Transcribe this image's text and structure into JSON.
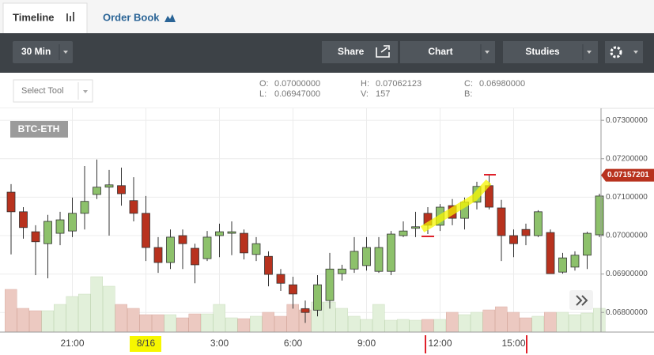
{
  "tabs": [
    "Timeline",
    "Order Book"
  ],
  "toolbar": {
    "interval": "30 Min",
    "share": "Share",
    "chart": "Chart",
    "studies": "Studies"
  },
  "select_tool": "Select Tool",
  "ohlc": [
    {
      "label": "O:",
      "value": "0.07000000"
    },
    {
      "label": "L:",
      "value": "0.06947000"
    },
    {
      "label": "H:",
      "value": "0.07062123"
    },
    {
      "label": "V:",
      "value": "157"
    },
    {
      "label": "C:",
      "value": "0.06980000"
    },
    {
      "label": "B:"
    }
  ],
  "chart_data": {
    "type": "candlestick",
    "symbol": "BTC-ETH",
    "categories": [
      null,
      null,
      null,
      null,
      null,
      "21:00",
      null,
      null,
      null,
      null,
      null,
      "8/16",
      null,
      null,
      null,
      null,
      null,
      "3:00",
      null,
      null,
      null,
      null,
      null,
      "6:00",
      null,
      null,
      null,
      null,
      null,
      "9:00",
      null,
      null,
      null,
      null,
      null,
      "12:00",
      null,
      null,
      null,
      null,
      null,
      "15:00",
      null,
      null,
      null,
      null,
      null,
      null,
      null
    ],
    "open": [
      0.07113,
      0.07062,
      0.0701,
      0.06979,
      0.07006,
      0.07012,
      0.07058,
      0.07107,
      0.07126,
      0.0713,
      0.07091,
      0.07058,
      0.06969,
      0.0693,
      0.07,
      0.06967,
      0.0694,
      0.07,
      0.07006,
      0.07006,
      0.06951,
      0.06946,
      0.06899,
      0.06872,
      0.0681,
      0.06806,
      0.06831,
      0.06901,
      0.06913,
      0.06922,
      0.06907,
      0.06907,
      0.07,
      0.07019,
      0.07058,
      0.07027,
      0.07078,
      0.07045,
      0.07087,
      0.0713,
      0.07072,
      0.07,
      0.07016,
      0.07,
      0.07008,
      0.06905,
      0.06918,
      0.06949,
      0.07002
    ],
    "high": [
      0.07134,
      0.07074,
      0.07027,
      0.07054,
      0.07062,
      0.07099,
      0.07181,
      0.07198,
      0.07171,
      0.07177,
      0.07152,
      0.07103,
      0.06996,
      0.07016,
      0.07016,
      0.06979,
      0.07012,
      0.07031,
      0.07037,
      0.07016,
      0.06996,
      0.06959,
      0.06913,
      0.06893,
      0.06831,
      0.06897,
      0.06955,
      0.06924,
      0.06996,
      0.06996,
      0.06996,
      0.07012,
      0.07037,
      0.07062,
      0.07074,
      0.07082,
      0.07095,
      0.07099,
      0.0714,
      0.07159,
      0.07093,
      0.07016,
      0.07031,
      0.07066,
      0.07016,
      0.06955,
      0.06959,
      0.0701,
      0.07109
    ],
    "low": [
      0.06951,
      0.06992,
      0.06897,
      0.06889,
      0.06975,
      0.06996,
      0.07016,
      0.07095,
      0.07,
      0.07078,
      0.07037,
      0.06934,
      0.06903,
      0.06913,
      0.06913,
      0.06876,
      0.06934,
      0.06944,
      0.06949,
      0.06938,
      0.06934,
      0.06868,
      0.06856,
      0.0681,
      0.06773,
      0.0679,
      0.0681,
      0.06883,
      0.06903,
      0.06909,
      0.06903,
      0.06897,
      0.06996,
      0.06996,
      0.07004,
      0.07012,
      0.07027,
      0.07016,
      0.07068,
      0.07068,
      0.06934,
      0.06944,
      0.06975,
      0.06996,
      0.06901,
      0.06901,
      0.06909,
      0.06913,
      0.06996
    ],
    "close": [
      0.07062,
      0.07021,
      0.06984,
      0.07037,
      0.07041,
      0.07058,
      0.07089,
      0.07126,
      0.07132,
      0.07109,
      0.07058,
      0.06969,
      0.0693,
      0.06996,
      0.06979,
      0.06924,
      0.06996,
      0.0701,
      0.0701,
      0.06955,
      0.06979,
      0.06899,
      0.06876,
      0.06848,
      0.068,
      0.06872,
      0.06913,
      0.06913,
      0.06959,
      0.06969,
      0.06969,
      0.07004,
      0.07012,
      0.07023,
      0.07027,
      0.07074,
      0.07045,
      0.07087,
      0.07128,
      0.07074,
      0.07,
      0.06979,
      0.07,
      0.07062,
      0.06901,
      0.06942,
      0.06949,
      0.07006,
      0.07103
    ],
    "volume": [
      54,
      30,
      27,
      27,
      35,
      45,
      48,
      70,
      58,
      35,
      30,
      22,
      22,
      22,
      18,
      23,
      23,
      35,
      18,
      17,
      20,
      25,
      20,
      35,
      28,
      38,
      38,
      30,
      20,
      16,
      35,
      15,
      16,
      15,
      16,
      16,
      25,
      22,
      25,
      28,
      32,
      25,
      18,
      20,
      25,
      25,
      22,
      24,
      30
    ],
    "ylim": [
      0.06749,
      0.07325
    ],
    "yticks": [
      {
        "value": 0.068,
        "label": "0.06800000"
      },
      {
        "value": 0.069,
        "label": "0.06900000"
      },
      {
        "value": 0.07,
        "label": "0.07000000"
      },
      {
        "value": 0.071,
        "label": "0.07100000"
      },
      {
        "value": 0.072,
        "label": "0.07200000"
      },
      {
        "value": 0.073,
        "label": "0.07300000"
      }
    ],
    "last_price": {
      "value": 0.07157201,
      "label": "0.07157201"
    },
    "up_color": "#8dc16b",
    "down_color": "#b8321e",
    "volume_up_color": "#e2f0da",
    "volume_down_color": "#ecc9c1",
    "grid": true
  }
}
